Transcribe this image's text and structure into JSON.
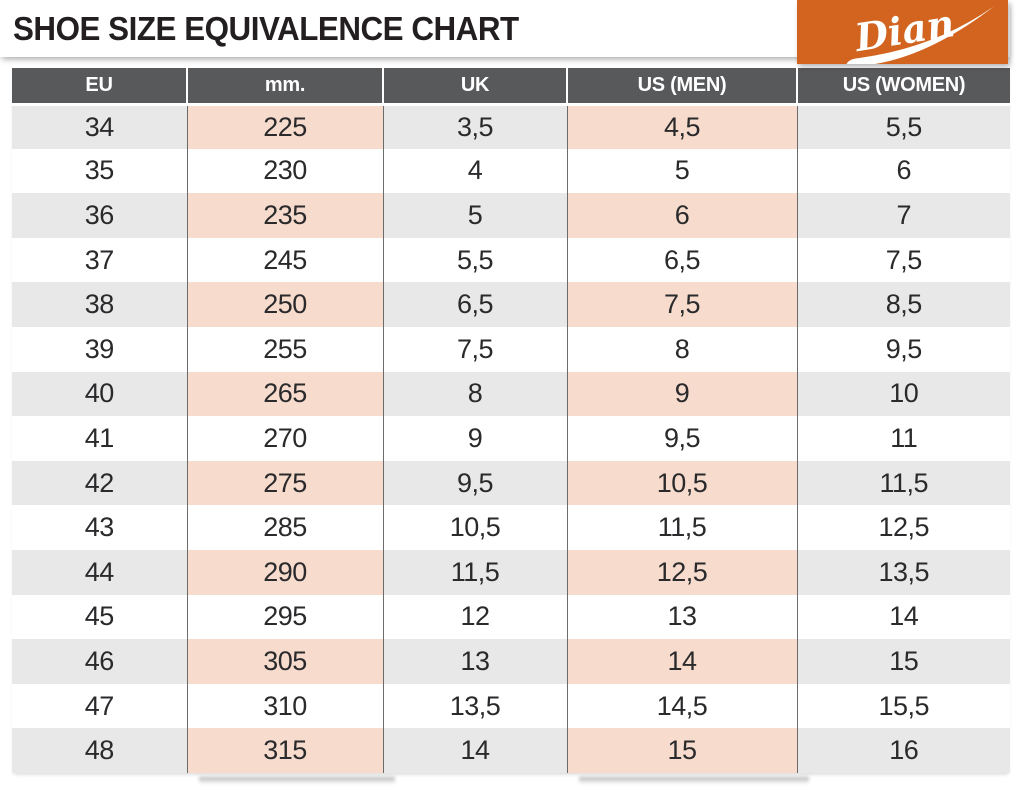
{
  "page": {
    "title": "SHOE SIZE EQUIVALENCE CHART"
  },
  "brand": {
    "name": "Dian",
    "bg_color": "#d2641f"
  },
  "table": {
    "columns": [
      "EU",
      "mm.",
      "UK",
      "US (MEN)",
      "US (WOMEN)"
    ],
    "rows": [
      [
        "34",
        "225",
        "3,5",
        "4,5",
        "5,5"
      ],
      [
        "35",
        "230",
        "4",
        "5",
        "6"
      ],
      [
        "36",
        "235",
        "5",
        "6",
        "7"
      ],
      [
        "37",
        "245",
        "5,5",
        "6,5",
        "7,5"
      ],
      [
        "38",
        "250",
        "6,5",
        "7,5",
        "8,5"
      ],
      [
        "39",
        "255",
        "7,5",
        "8",
        "9,5"
      ],
      [
        "40",
        "265",
        "8",
        "9",
        "10"
      ],
      [
        "41",
        "270",
        "9",
        "9,5",
        "11"
      ],
      [
        "42",
        "275",
        "9,5",
        "10,5",
        "11,5"
      ],
      [
        "43",
        "285",
        "10,5",
        "11,5",
        "12,5"
      ],
      [
        "44",
        "290",
        "11,5",
        "12,5",
        "13,5"
      ],
      [
        "45",
        "295",
        "12",
        "13",
        "14"
      ],
      [
        "46",
        "305",
        "13",
        "14",
        "15"
      ],
      [
        "47",
        "310",
        "13,5",
        "14,5",
        "15,5"
      ],
      [
        "48",
        "315",
        "14",
        "15",
        "16"
      ]
    ],
    "colors": {
      "header_bg": "#58595b",
      "shaded_row": "#e8e8e8",
      "highlight_cell": "#f7dccd",
      "column_line": "#6b6b6b",
      "text": "#2a2a2c"
    }
  },
  "chart_data": {
    "type": "table",
    "title": "SHOE SIZE EQUIVALENCE CHART",
    "columns": [
      "EU",
      "mm.",
      "UK",
      "US (MEN)",
      "US (WOMEN)"
    ],
    "rows": [
      [
        "34",
        "225",
        "3,5",
        "4,5",
        "5,5"
      ],
      [
        "35",
        "230",
        "4",
        "5",
        "6"
      ],
      [
        "36",
        "235",
        "5",
        "6",
        "7"
      ],
      [
        "37",
        "245",
        "5,5",
        "6,5",
        "7,5"
      ],
      [
        "38",
        "250",
        "6,5",
        "7,5",
        "8,5"
      ],
      [
        "39",
        "255",
        "7,5",
        "8",
        "9,5"
      ],
      [
        "40",
        "265",
        "8",
        "9",
        "10"
      ],
      [
        "41",
        "270",
        "9",
        "9,5",
        "11"
      ],
      [
        "42",
        "275",
        "9,5",
        "10,5",
        "11,5"
      ],
      [
        "43",
        "285",
        "10,5",
        "11,5",
        "12,5"
      ],
      [
        "44",
        "290",
        "11,5",
        "12,5",
        "13,5"
      ],
      [
        "45",
        "295",
        "12",
        "13",
        "14"
      ],
      [
        "46",
        "305",
        "13",
        "14",
        "15"
      ],
      [
        "47",
        "310",
        "13,5",
        "14,5",
        "15,5"
      ],
      [
        "48",
        "315",
        "14",
        "15",
        "16"
      ]
    ],
    "layout": {
      "highlighted_columns": [
        "mm.",
        "US (MEN)"
      ],
      "shaded_rows": "every other row starting with EU 34",
      "decimal_separator": ","
    }
  }
}
